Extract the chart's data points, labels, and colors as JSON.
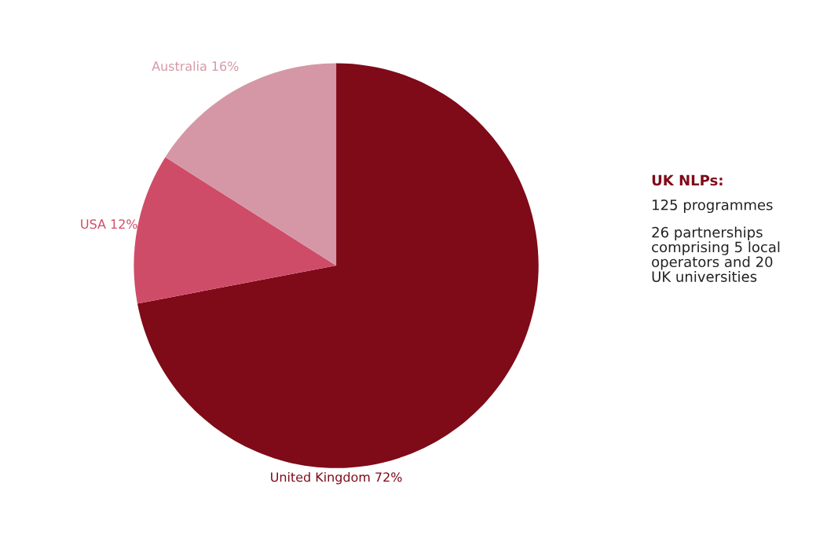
{
  "chart_data": {
    "type": "pie",
    "categories": [
      "United Kingdom",
      "USA",
      "Australia"
    ],
    "values": [
      72,
      12,
      16
    ],
    "colors": [
      "#7f0a18",
      "#cf4c68",
      "#d597a6"
    ],
    "value_labels": [
      "72%",
      "12%",
      "16%"
    ],
    "annotations": [
      "UK NLPs:",
      "125 programmes",
      "26 partnerships comprising 5 local operators and 20 UK universities"
    ]
  }
}
